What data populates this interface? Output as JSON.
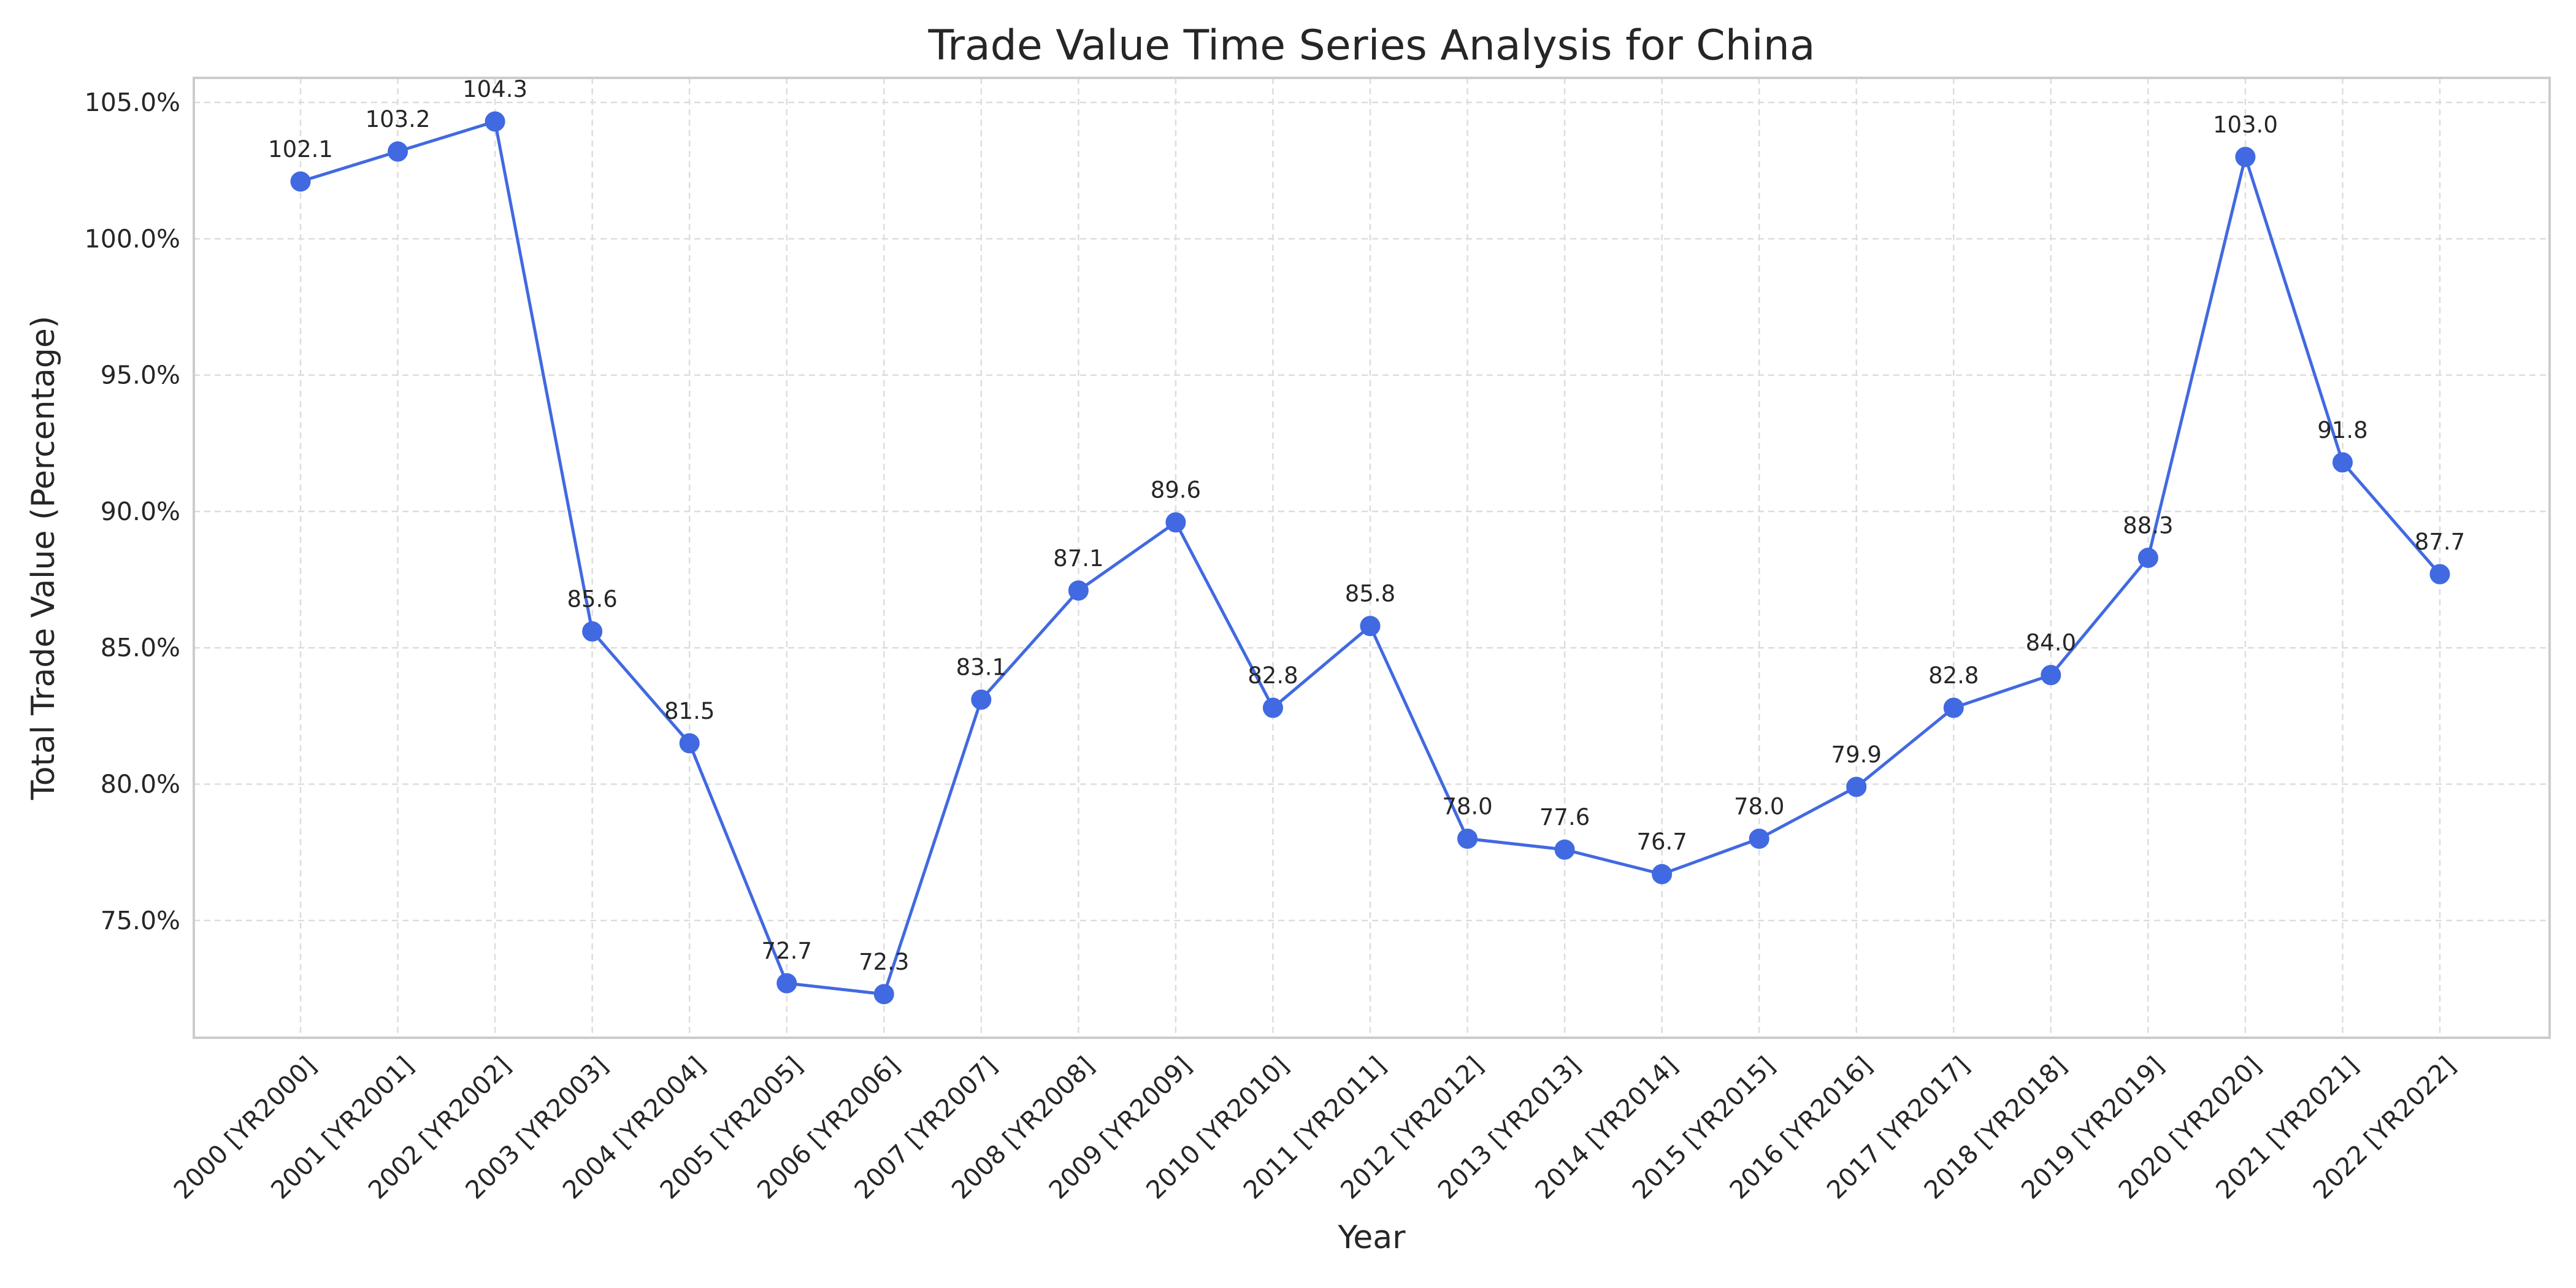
{
  "chart_data": {
    "type": "line",
    "title": "Trade Value Time Series Analysis for China",
    "xlabel": "Year",
    "ylabel": "Total Trade Value (Percentage)",
    "categories": [
      "2000 [YR2000]",
      "2001 [YR2001]",
      "2002 [YR2002]",
      "2003 [YR2003]",
      "2004 [YR2004]",
      "2005 [YR2005]",
      "2006 [YR2006]",
      "2007 [YR2007]",
      "2008 [YR2008]",
      "2009 [YR2009]",
      "2010 [YR2010]",
      "2011 [YR2011]",
      "2012 [YR2012]",
      "2013 [YR2013]",
      "2014 [YR2014]",
      "2015 [YR2015]",
      "2016 [YR2016]",
      "2017 [YR2017]",
      "2018 [YR2018]",
      "2019 [YR2019]",
      "2020 [YR2020]",
      "2021 [YR2021]",
      "2022 [YR2022]"
    ],
    "series": [
      {
        "values": [
          102.1,
          103.2,
          104.3,
          85.6,
          81.5,
          72.7,
          72.3,
          83.1,
          87.1,
          89.6,
          82.8,
          85.8,
          78.0,
          77.6,
          76.7,
          78.0,
          79.9,
          82.8,
          84.0,
          88.3,
          103.0,
          91.8,
          87.7
        ],
        "data_labels": [
          "102.1",
          "103.2",
          "104.3",
          "85.6",
          "81.5",
          "72.7",
          "72.3",
          "83.1",
          "87.1",
          "89.6",
          "82.8",
          "85.8",
          "78.0",
          "77.6",
          "76.7",
          "78.0",
          "79.9",
          "82.8",
          "84.0",
          "88.3",
          "103.0",
          "91.8",
          "87.7"
        ],
        "color": "#4169e1",
        "marker": "circle"
      }
    ],
    "yticks": [
      75,
      80,
      85,
      90,
      95,
      100,
      105
    ],
    "ytick_labels": [
      "75.0%",
      "80.0%",
      "85.0%",
      "90.0%",
      "95.0%",
      "100.0%",
      "105.0%"
    ],
    "ylim": [
      70.7,
      105.9
    ],
    "grid": true,
    "legend": "none"
  }
}
